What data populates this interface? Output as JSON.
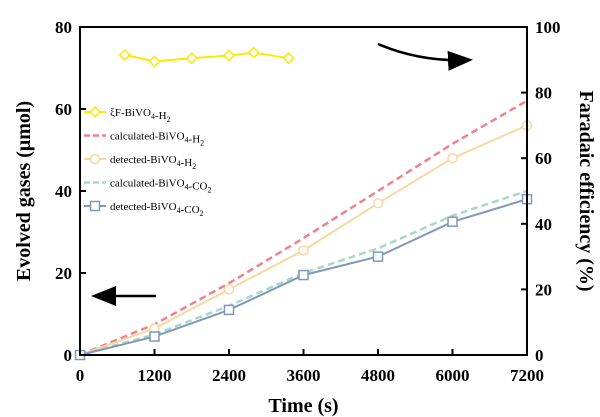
{
  "chart_data": {
    "type": "line",
    "xlabel": "Time (s)",
    "ylabel": "Evolved gases (μmol)",
    "ylabel_right": "Faradaic efficiency (%)",
    "xlim": [
      0,
      7200
    ],
    "ylim": [
      0,
      80
    ],
    "ylim_right": [
      0,
      100
    ],
    "x_ticks": [
      "0",
      "1200",
      "2400",
      "3600",
      "4800",
      "6000",
      "7200"
    ],
    "y_ticks": [
      "0",
      "20",
      "40",
      "60",
      "80"
    ],
    "y_ticks_right": [
      "0",
      "20",
      "40",
      "60",
      "80",
      "100"
    ],
    "legend_position": "center-left",
    "series": [
      {
        "name": "ξF-BiVO4-H2",
        "axis": "right",
        "style": "solid-diamond",
        "color": "#ffe800",
        "x": [
          720,
          1200,
          1800,
          2400,
          2800,
          3360
        ],
        "y": [
          91.5,
          89.5,
          90.5,
          91.3,
          92.2,
          90.5
        ]
      },
      {
        "name": "calculated-BiVO4-H2",
        "axis": "left",
        "style": "dashed",
        "color": "#f0828f",
        "x": [
          0,
          1200,
          2400,
          3600,
          4800,
          6000,
          7200
        ],
        "y": [
          0,
          7.5,
          17.5,
          28.5,
          40,
          51.5,
          62
        ]
      },
      {
        "name": "detected-BiVO4-H2",
        "axis": "left",
        "style": "solid-circle",
        "color": "#f8d8a0",
        "x": [
          0,
          1200,
          2400,
          3600,
          4800,
          6000,
          7200
        ],
        "y": [
          0,
          6.5,
          16,
          25.5,
          37,
          48,
          56
        ]
      },
      {
        "name": "calculated-BiVO4-CO2",
        "axis": "left",
        "style": "dashed",
        "color": "#a9d8c6",
        "x": [
          0,
          1200,
          2400,
          3600,
          4800,
          6000,
          7200
        ],
        "y": [
          0,
          5,
          12,
          20,
          26,
          34,
          40
        ]
      },
      {
        "name": "detected-BiVO4-CO2",
        "axis": "left",
        "style": "solid-square",
        "color": "#7f98bc",
        "x": [
          0,
          1200,
          2400,
          3600,
          4800,
          6000,
          7200
        ],
        "y": [
          0,
          4.5,
          11,
          19.5,
          24,
          32.5,
          38
        ]
      }
    ]
  }
}
